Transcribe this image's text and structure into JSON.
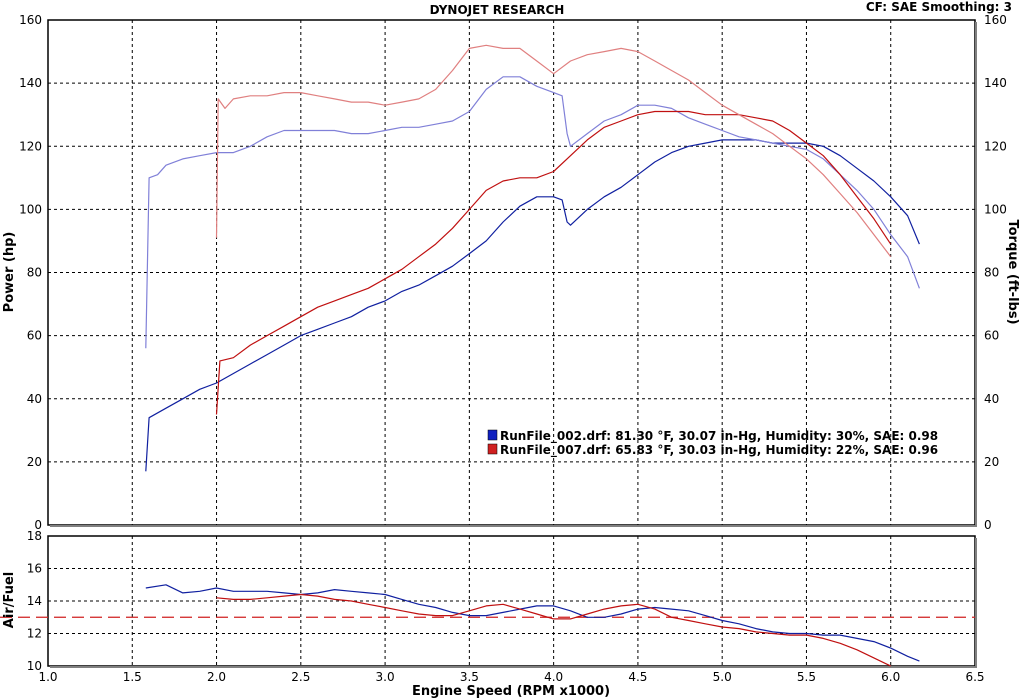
{
  "header": {
    "title": "DYNOJET RESEARCH",
    "info": "CF: SAE  Smoothing: 3"
  },
  "chart_data": [
    {
      "type": "line",
      "name_key": "power-torque",
      "xlabel": "Engine Speed (RPM x1000)",
      "ylabel_left": "Power (hp)",
      "ylabel_right": "Torque (ft-lbs)",
      "xlim": [
        1.0,
        6.5
      ],
      "ylim": [
        0,
        160
      ],
      "x_ticks": [
        1.5,
        2.0,
        2.5,
        3.0,
        3.5,
        4.0,
        4.5,
        5.0,
        5.5,
        6.0
      ],
      "y_ticks": [
        0,
        20,
        40,
        60,
        80,
        100,
        120,
        140,
        160
      ],
      "grid": true,
      "legend": {
        "placement": "bottom-right",
        "entries": [
          {
            "label": "RunFile_002.drf: 81.30 °F, 30.07 in-Hg, Humidity: 30%, SAE: 0.98",
            "color": "#1020c0"
          },
          {
            "label": "RunFile_007.drf: 65.83 °F, 30.03 in-Hg, Humidity: 22%, SAE: 0.96",
            "color": "#d02020"
          }
        ]
      },
      "series": [
        {
          "file": "RunFile_002.drf",
          "measure": "power",
          "color": "#1020a0",
          "x": [
            1.58,
            1.6,
            1.7,
            1.8,
            1.9,
            2.0,
            2.1,
            2.2,
            2.3,
            2.4,
            2.5,
            2.6,
            2.7,
            2.8,
            2.9,
            3.0,
            3.1,
            3.2,
            3.3,
            3.4,
            3.5,
            3.6,
            3.7,
            3.8,
            3.9,
            4.0,
            4.05,
            4.08,
            4.1,
            4.2,
            4.3,
            4.4,
            4.5,
            4.6,
            4.7,
            4.8,
            4.9,
            5.0,
            5.1,
            5.2,
            5.3,
            5.4,
            5.5,
            5.6,
            5.7,
            5.8,
            5.9,
            6.0,
            6.1,
            6.17
          ],
          "y": [
            17,
            34,
            37,
            40,
            43,
            45,
            48,
            51,
            54,
            57,
            60,
            62,
            64,
            66,
            69,
            71,
            74,
            76,
            79,
            82,
            86,
            90,
            96,
            101,
            104,
            104,
            103,
            96,
            95,
            100,
            104,
            107,
            111,
            115,
            118,
            120,
            121,
            122,
            122,
            122,
            121,
            121,
            121,
            120,
            117,
            113,
            109,
            104,
            98,
            89
          ]
        },
        {
          "file": "RunFile_002.drf",
          "measure": "torque",
          "color": "#8080d8",
          "x": [
            1.58,
            1.6,
            1.65,
            1.7,
            1.8,
            1.9,
            2.0,
            2.1,
            2.2,
            2.3,
            2.4,
            2.5,
            2.6,
            2.7,
            2.8,
            2.9,
            3.0,
            3.1,
            3.2,
            3.3,
            3.4,
            3.5,
            3.6,
            3.7,
            3.8,
            3.9,
            4.0,
            4.05,
            4.08,
            4.1,
            4.2,
            4.3,
            4.4,
            4.5,
            4.6,
            4.7,
            4.8,
            4.9,
            5.0,
            5.1,
            5.2,
            5.3,
            5.4,
            5.5,
            5.6,
            5.7,
            5.8,
            5.9,
            6.0,
            6.1,
            6.17
          ],
          "y": [
            56,
            110,
            111,
            114,
            116,
            117,
            118,
            118,
            120,
            123,
            125,
            125,
            125,
            125,
            124,
            124,
            125,
            126,
            126,
            127,
            128,
            131,
            138,
            142,
            142,
            139,
            137,
            136,
            124,
            120,
            124,
            128,
            130,
            133,
            133,
            132,
            129,
            127,
            125,
            123,
            122,
            121,
            120,
            119,
            116,
            111,
            106,
            100,
            92,
            85,
            75
          ]
        },
        {
          "file": "RunFile_007.drf",
          "measure": "power",
          "color": "#c01010",
          "x": [
            2.0,
            2.02,
            2.1,
            2.2,
            2.3,
            2.4,
            2.5,
            2.6,
            2.7,
            2.8,
            2.9,
            3.0,
            3.1,
            3.2,
            3.3,
            3.4,
            3.5,
            3.6,
            3.7,
            3.8,
            3.9,
            4.0,
            4.1,
            4.2,
            4.3,
            4.4,
            4.5,
            4.6,
            4.7,
            4.8,
            4.9,
            5.0,
            5.1,
            5.2,
            5.3,
            5.4,
            5.5,
            5.6,
            5.7,
            5.8,
            5.9,
            6.0
          ],
          "y": [
            35,
            52,
            53,
            57,
            60,
            63,
            66,
            69,
            71,
            73,
            75,
            78,
            81,
            85,
            89,
            94,
            100,
            106,
            109,
            110,
            110,
            112,
            117,
            122,
            126,
            128,
            130,
            131,
            131,
            131,
            130,
            130,
            130,
            129,
            128,
            125,
            121,
            117,
            111,
            104,
            97,
            89
          ]
        },
        {
          "file": "RunFile_007.drf",
          "measure": "torque",
          "color": "#e08080",
          "x": [
            2.0,
            2.01,
            2.05,
            2.1,
            2.2,
            2.3,
            2.4,
            2.5,
            2.6,
            2.7,
            2.8,
            2.9,
            3.0,
            3.1,
            3.2,
            3.3,
            3.4,
            3.5,
            3.6,
            3.7,
            3.8,
            3.9,
            4.0,
            4.1,
            4.2,
            4.3,
            4.4,
            4.5,
            4.6,
            4.7,
            4.8,
            4.9,
            5.0,
            5.1,
            5.2,
            5.3,
            5.4,
            5.5,
            5.6,
            5.7,
            5.8,
            5.9,
            6.0
          ],
          "y": [
            91,
            135,
            132,
            135,
            136,
            136,
            137,
            137,
            136,
            135,
            134,
            134,
            133,
            134,
            135,
            138,
            144,
            151,
            152,
            151,
            151,
            147,
            143,
            147,
            149,
            150,
            151,
            150,
            147,
            144,
            141,
            137,
            133,
            130,
            127,
            124,
            120,
            116,
            111,
            105,
            99,
            92,
            85
          ]
        }
      ]
    },
    {
      "type": "line",
      "name_key": "air-fuel",
      "ylabel": "Air/Fuel",
      "xlim": [
        1.0,
        6.5
      ],
      "ylim": [
        10,
        18
      ],
      "x_ticks": [
        1.0,
        1.5,
        2.0,
        2.5,
        3.0,
        3.5,
        4.0,
        4.5,
        5.0,
        5.5,
        6.0,
        6.5
      ],
      "x_tick_labels": [
        "1.0",
        "1.5",
        "2.0",
        "2.5",
        "3.0",
        "3.5",
        "4.0",
        "4.5",
        "5.0",
        "5.5",
        "6.0",
        "6.5"
      ],
      "y_ticks": [
        10,
        12,
        14,
        16,
        18
      ],
      "reference_line": 13.0,
      "grid": true,
      "series": [
        {
          "file": "RunFile_002.drf",
          "color": "#1020a0",
          "x": [
            1.58,
            1.7,
            1.8,
            1.9,
            2.0,
            2.1,
            2.2,
            2.3,
            2.4,
            2.5,
            2.6,
            2.7,
            2.8,
            2.9,
            3.0,
            3.1,
            3.2,
            3.3,
            3.4,
            3.5,
            3.6,
            3.7,
            3.8,
            3.9,
            4.0,
            4.1,
            4.2,
            4.3,
            4.4,
            4.5,
            4.6,
            4.7,
            4.8,
            4.9,
            5.0,
            5.1,
            5.2,
            5.3,
            5.4,
            5.5,
            5.6,
            5.7,
            5.8,
            5.9,
            6.0,
            6.1,
            6.17
          ],
          "y": [
            14.8,
            15.0,
            14.5,
            14.6,
            14.8,
            14.6,
            14.6,
            14.6,
            14.5,
            14.4,
            14.5,
            14.7,
            14.6,
            14.5,
            14.4,
            14.1,
            13.8,
            13.6,
            13.3,
            13.1,
            13.1,
            13.3,
            13.5,
            13.7,
            13.7,
            13.4,
            13.0,
            13.0,
            13.2,
            13.5,
            13.6,
            13.5,
            13.4,
            13.1,
            12.8,
            12.6,
            12.3,
            12.1,
            12.0,
            12.0,
            11.9,
            11.9,
            11.7,
            11.5,
            11.1,
            10.6,
            10.3
          ]
        },
        {
          "file": "RunFile_007.drf",
          "color": "#c01010",
          "x": [
            2.0,
            2.1,
            2.2,
            2.3,
            2.4,
            2.5,
            2.6,
            2.7,
            2.8,
            2.9,
            3.0,
            3.1,
            3.2,
            3.3,
            3.4,
            3.5,
            3.6,
            3.7,
            3.8,
            3.9,
            4.0,
            4.1,
            4.2,
            4.3,
            4.4,
            4.5,
            4.6,
            4.7,
            4.8,
            4.9,
            5.0,
            5.1,
            5.2,
            5.3,
            5.4,
            5.5,
            5.6,
            5.7,
            5.8,
            5.9,
            6.0
          ],
          "y": [
            14.2,
            14.1,
            14.1,
            14.2,
            14.3,
            14.4,
            14.3,
            14.1,
            14.0,
            13.8,
            13.6,
            13.4,
            13.2,
            13.1,
            13.1,
            13.4,
            13.7,
            13.8,
            13.5,
            13.2,
            12.9,
            12.9,
            13.2,
            13.5,
            13.7,
            13.8,
            13.5,
            13.0,
            12.8,
            12.6,
            12.4,
            12.3,
            12.1,
            12.0,
            11.9,
            11.9,
            11.7,
            11.4,
            11.0,
            10.5,
            10.0
          ]
        }
      ]
    }
  ]
}
